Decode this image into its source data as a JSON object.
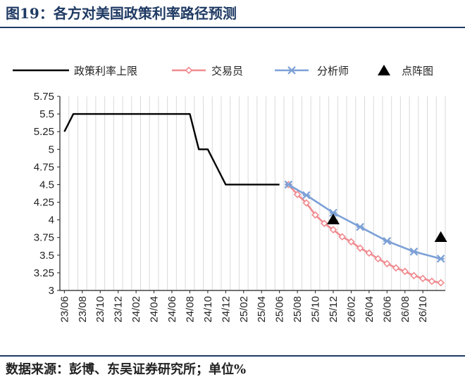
{
  "figure": {
    "title": "图19：各方对美国政策利率路径预测",
    "source": "数据来源：彭博、东吴证券研究所；单位%"
  },
  "chart_data": {
    "type": "line",
    "title": "",
    "xlabel": "",
    "ylabel": "",
    "ylim": [
      3,
      5.75
    ],
    "yticks": [
      "5.75",
      "5.5",
      "5.25",
      "5",
      "4.75",
      "4.5",
      "4.25",
      "4",
      "3.75",
      "3.5",
      "3.25",
      "3"
    ],
    "yticks_values": [
      5.75,
      5.5,
      5.25,
      5,
      4.75,
      4.5,
      4.25,
      4,
      3.75,
      3.5,
      3.25,
      3
    ],
    "xtick_labels": [
      "23/06",
      "23/08",
      "23/10",
      "23/12",
      "24/02",
      "24/04",
      "24/06",
      "24/08",
      "24/10",
      "24/12",
      "25/02",
      "25/04",
      "25/06",
      "25/08",
      "25/10",
      "25/12",
      "26/02",
      "26/04",
      "26/06",
      "26/08",
      "26/10"
    ],
    "grid": "vertical",
    "legend_position": "top",
    "series": [
      {
        "name": "政策利率上限",
        "color": "#000000",
        "style": "solid",
        "points": [
          [
            "23/06",
            5.25
          ],
          [
            "23/07",
            5.5
          ],
          [
            "24/08",
            5.5
          ],
          [
            "24/09",
            5.0
          ],
          [
            "24/10",
            5.0
          ],
          [
            "24/11",
            4.75
          ],
          [
            "24/12",
            4.5
          ],
          [
            "25/06",
            4.5
          ]
        ]
      },
      {
        "name": "交易员",
        "color": "#ef8a8f",
        "marker": "diamond",
        "points": [
          [
            "25/07",
            4.5
          ],
          [
            "25/08",
            4.36
          ],
          [
            "25/09",
            4.24
          ],
          [
            "25/10",
            4.07
          ],
          [
            "25/11",
            3.95
          ],
          [
            "25/12",
            3.86
          ],
          [
            "26/01",
            3.76
          ],
          [
            "26/02",
            3.69
          ],
          [
            "26/03",
            3.6
          ],
          [
            "26/04",
            3.53
          ],
          [
            "26/05",
            3.45
          ],
          [
            "26/06",
            3.38
          ],
          [
            "26/07",
            3.32
          ],
          [
            "26/08",
            3.27
          ],
          [
            "26/09",
            3.21
          ],
          [
            "26/10",
            3.17
          ],
          [
            "26/11",
            3.13
          ],
          [
            "26/12",
            3.11
          ]
        ]
      },
      {
        "name": "分析师",
        "color": "#7ca0d6",
        "marker": "star",
        "points": [
          [
            "25/07",
            4.5
          ],
          [
            "25/09",
            4.35
          ],
          [
            "25/12",
            4.1
          ],
          [
            "26/03",
            3.9
          ],
          [
            "26/06",
            3.7
          ],
          [
            "26/09",
            3.55
          ],
          [
            "26/12",
            3.45
          ]
        ]
      },
      {
        "name": "点阵图",
        "color": "#000000",
        "marker": "triangle",
        "points": [
          [
            "25/12",
            4.0
          ],
          [
            "26/12",
            3.75
          ]
        ]
      }
    ]
  }
}
